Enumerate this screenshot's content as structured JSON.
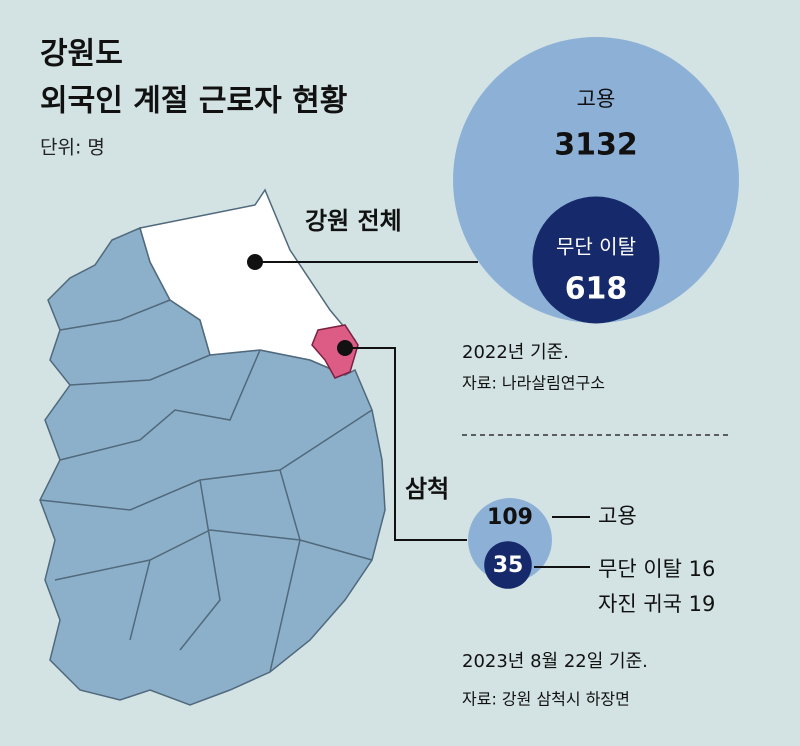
{
  "header": {
    "title": [
      "강원도",
      "외국인 계절 근로자 현황"
    ],
    "unit": "단위: 명"
  },
  "gangwon": {
    "label": "강원 전체",
    "employed": {
      "label": "고용",
      "value": 3132
    },
    "absconded": {
      "label": "무단 이탈",
      "value": 618
    },
    "note": "2022년 기준.",
    "source": "자료: 나라살림연구소"
  },
  "samcheok": {
    "label": "삼척",
    "employed": {
      "label": "고용",
      "value": 109
    },
    "absconded": {
      "value": 35,
      "breakdown": [
        {
          "label": "무단 이탈",
          "value": 16
        },
        {
          "label": "자진 귀국",
          "value": 19
        }
      ]
    },
    "note": "2023년 8월 22일 기준.",
    "source": "자료: 강원 삼척시 하장면"
  }
}
